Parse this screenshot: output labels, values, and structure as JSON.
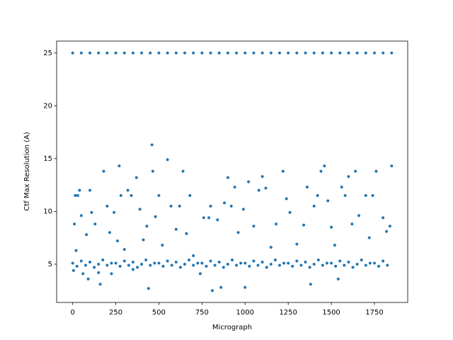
{
  "chart_data": {
    "type": "scatter",
    "xlabel": "Micrograph",
    "ylabel": "Ctf Max Resolution (A)",
    "color": "#1f77b4",
    "xlim": [
      -93,
      1943
    ],
    "ylim": [
      1.375,
      26.125
    ],
    "xticks": [
      0,
      250,
      500,
      750,
      1000,
      1250,
      1500,
      1750
    ],
    "yticks": [
      5,
      10,
      15,
      20,
      25
    ],
    "x": [
      0,
      50,
      100,
      150,
      200,
      250,
      300,
      350,
      400,
      450,
      500,
      550,
      600,
      650,
      700,
      750,
      800,
      850,
      900,
      950,
      1000,
      1050,
      1100,
      1150,
      1200,
      1250,
      1300,
      1350,
      1400,
      1450,
      1500,
      1550,
      1600,
      1650,
      1700,
      1750,
      1800,
      1850,
      0,
      25,
      50,
      75,
      100,
      125,
      150,
      175,
      200,
      225,
      250,
      275,
      300,
      325,
      350,
      375,
      400,
      425,
      450,
      475,
      500,
      525,
      550,
      575,
      600,
      625,
      650,
      675,
      700,
      725,
      750,
      775,
      800,
      825,
      850,
      875,
      900,
      925,
      950,
      975,
      1000,
      1025,
      1050,
      1075,
      1100,
      1125,
      1150,
      1175,
      1200,
      1225,
      1250,
      1275,
      1300,
      1325,
      1350,
      1375,
      1400,
      1425,
      1450,
      1475,
      1500,
      1525,
      1550,
      1575,
      1600,
      1625,
      1650,
      1675,
      1700,
      1725,
      1750,
      1775,
      1800,
      1825,
      5,
      10,
      15,
      20,
      30,
      40,
      50,
      60,
      80,
      90,
      100,
      110,
      130,
      150,
      160,
      180,
      200,
      215,
      225,
      240,
      260,
      270,
      280,
      300,
      320,
      340,
      350,
      370,
      390,
      410,
      430,
      440,
      460,
      465,
      480,
      500,
      520,
      550,
      570,
      600,
      620,
      640,
      660,
      680,
      700,
      740,
      760,
      790,
      800,
      810,
      840,
      860,
      880,
      900,
      920,
      940,
      960,
      990,
      1000,
      1020,
      1050,
      1080,
      1100,
      1120,
      1150,
      1180,
      1220,
      1240,
      1260,
      1300,
      1340,
      1360,
      1380,
      1400,
      1420,
      1440,
      1460,
      1480,
      1500,
      1520,
      1540,
      1560,
      1580,
      1600,
      1620,
      1640,
      1660,
      1700,
      1720,
      1740,
      1760,
      1800,
      1820,
      1840,
      1850
    ],
    "values": [
      25,
      25,
      25,
      25,
      25,
      25,
      25,
      25,
      25,
      25,
      25,
      25,
      25,
      25,
      25,
      25,
      25,
      25,
      25,
      25,
      25,
      25,
      25,
      25,
      25,
      25,
      25,
      25,
      25,
      25,
      25,
      25,
      25,
      25,
      25,
      25,
      25,
      25,
      5.1,
      4.8,
      5.3,
      4.9,
      5.2,
      4.7,
      5.0,
      5.4,
      4.9,
      5.1,
      5.1,
      4.8,
      5.3,
      4.9,
      5.2,
      4.7,
      5.0,
      5.4,
      4.9,
      5.1,
      5.1,
      4.8,
      5.3,
      4.9,
      5.2,
      4.7,
      5.0,
      5.4,
      4.9,
      5.1,
      5.1,
      4.8,
      5.3,
      4.9,
      5.2,
      4.7,
      5.0,
      5.4,
      4.9,
      5.1,
      5.1,
      4.8,
      5.3,
      4.9,
      5.2,
      4.7,
      5.0,
      5.4,
      4.9,
      5.1,
      5.1,
      4.8,
      5.3,
      4.9,
      5.2,
      4.7,
      5.0,
      5.4,
      4.9,
      5.1,
      5.1,
      4.8,
      5.3,
      4.9,
      5.2,
      4.7,
      5.0,
      5.4,
      4.9,
      5.1,
      5.1,
      4.8,
      5.3,
      4.9,
      4.4,
      8.8,
      11.5,
      6.3,
      11.5,
      12,
      9.6,
      4.1,
      7.8,
      3.6,
      12,
      9.9,
      8.8,
      4.2,
      3.1,
      13.8,
      10.5,
      8,
      4.1,
      9.9,
      7.2,
      14.3,
      11.5,
      6.4,
      12,
      11.5,
      4.5,
      13.2,
      10.2,
      7.3,
      8.6,
      2.7,
      16.3,
      13.8,
      9.5,
      11.5,
      6.8,
      14.9,
      10.5,
      8.3,
      10.5,
      13.8,
      7.9,
      11.5,
      5.8,
      4.1,
      9.4,
      9.4,
      10.5,
      2.5,
      9.2,
      2.8,
      10.8,
      13.2,
      10.5,
      12.3,
      8,
      10.2,
      2.8,
      12.8,
      8.6,
      12,
      13.3,
      12.2,
      6.6,
      8.8,
      13.8,
      11.2,
      9.9,
      6.9,
      8.7,
      12.3,
      3.1,
      10.5,
      11.5,
      13.8,
      14.3,
      11,
      8.5,
      6.8,
      3.6,
      12.3,
      11.5,
      13.3,
      8.8,
      13.8,
      9.6,
      11.5,
      7.5,
      11.5,
      13.8,
      9.4,
      8.1,
      8.6,
      14.3
    ]
  }
}
